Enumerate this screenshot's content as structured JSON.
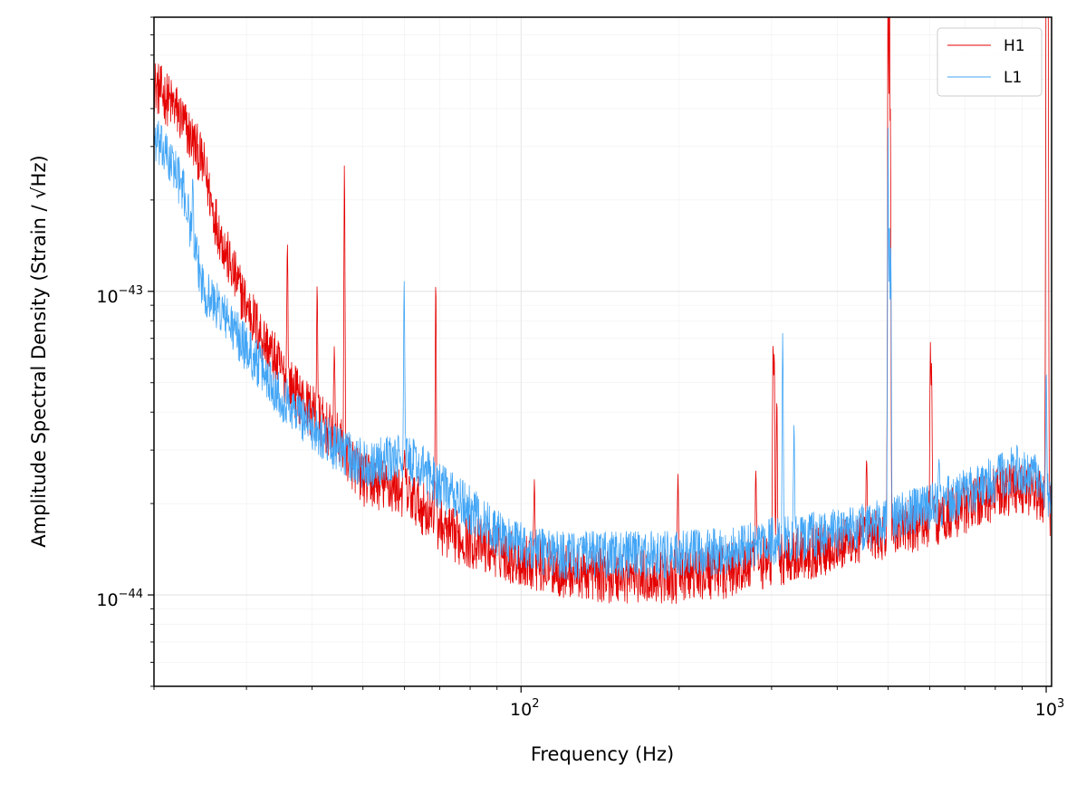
{
  "chart_data": {
    "type": "line",
    "xlabel": "Frequency (Hz)",
    "ylabel": "Amplitude Spectral Density (Strain / √Hz)",
    "x_scale": "log",
    "y_scale": "log",
    "xlim": [
      20,
      1024
    ],
    "ylim": [
      5e-45,
      8e-43
    ],
    "grid": true,
    "legend_position": "top-right",
    "x_ticks": [
      {
        "value": 100,
        "label": "10",
        "exp": "2"
      },
      {
        "value": 1000,
        "label": "10",
        "exp": "3"
      }
    ],
    "y_ticks": [
      {
        "value": 1e-44,
        "label": "10",
        "exp": "−44"
      },
      {
        "value": 1e-43,
        "label": "10",
        "exp": "−43"
      }
    ],
    "series": [
      {
        "name": "H1",
        "color": "#e50000",
        "baseline": [
          [
            20,
            4.8e-43
          ],
          [
            22,
            4e-43
          ],
          [
            24,
            3e-43
          ],
          [
            25,
            2.5e-43
          ],
          [
            26,
            1.8e-43
          ],
          [
            28,
            1.2e-43
          ],
          [
            30,
            9e-44
          ],
          [
            33,
            6.5e-44
          ],
          [
            36,
            5e-44
          ],
          [
            40,
            4e-44
          ],
          [
            45,
            3.2e-44
          ],
          [
            50,
            2.4e-44
          ],
          [
            60,
            2.2e-44
          ],
          [
            68,
            1.8e-44
          ],
          [
            72,
            1.6e-44
          ],
          [
            80,
            1.5e-44
          ],
          [
            90,
            1.4e-44
          ],
          [
            100,
            1.3e-44
          ],
          [
            120,
            1.2e-44
          ],
          [
            150,
            1.15e-44
          ],
          [
            200,
            1.15e-44
          ],
          [
            250,
            1.2e-44
          ],
          [
            300,
            1.3e-44
          ],
          [
            400,
            1.45e-44
          ],
          [
            500,
            1.6e-44
          ],
          [
            600,
            1.75e-44
          ],
          [
            700,
            1.95e-44
          ],
          [
            800,
            2.15e-44
          ],
          [
            880,
            2.3e-44
          ],
          [
            950,
            2.2e-44
          ],
          [
            1024,
            1.9e-44
          ]
        ],
        "noise": 0.09,
        "peaks": [
          [
            35.9,
            1.45e-43
          ],
          [
            40.9,
            1.05e-43
          ],
          [
            44.1,
            6.6e-44
          ],
          [
            46.1,
            2.65e-43
          ],
          [
            60,
            3e-44
          ],
          [
            68.8,
            1.1e-43
          ],
          [
            106,
            2.4e-44
          ],
          [
            199,
            2.5e-44
          ],
          [
            280,
            2.6e-44
          ],
          [
            302,
            7e-44
          ],
          [
            303.5,
            6.5e-44
          ],
          [
            307,
            4.5e-44
          ],
          [
            455,
            2.8e-44
          ],
          [
            500,
            1.4e-42
          ],
          [
            503,
            1.3e-42
          ],
          [
            505,
            4e-43
          ],
          [
            602,
            6.8e-44
          ],
          [
            605,
            5.8e-44
          ],
          [
            1000,
            1.5e-42
          ],
          [
            1004,
            1.4e-42
          ],
          [
            1008,
            1.2e-42
          ]
        ]
      },
      {
        "name": "L1",
        "color": "#42a5f5",
        "baseline": [
          [
            20,
            3.2e-43
          ],
          [
            22,
            2.5e-43
          ],
          [
            23,
            2e-43
          ],
          [
            24,
            1.3e-43
          ],
          [
            25,
            1e-43
          ],
          [
            27,
            8.5e-44
          ],
          [
            30,
            6.5e-44
          ],
          [
            35,
            4.5e-44
          ],
          [
            40,
            3.6e-44
          ],
          [
            45,
            3e-44
          ],
          [
            50,
            2.7e-44
          ],
          [
            55,
            2.75e-44
          ],
          [
            60,
            2.85e-44
          ],
          [
            65,
            2.6e-44
          ],
          [
            70,
            2.3e-44
          ],
          [
            80,
            1.9e-44
          ],
          [
            90,
            1.6e-44
          ],
          [
            100,
            1.45e-44
          ],
          [
            120,
            1.35e-44
          ],
          [
            150,
            1.35e-44
          ],
          [
            200,
            1.35e-44
          ],
          [
            250,
            1.4e-44
          ],
          [
            300,
            1.5e-44
          ],
          [
            400,
            1.6e-44
          ],
          [
            500,
            1.75e-44
          ],
          [
            600,
            1.95e-44
          ],
          [
            700,
            2.15e-44
          ],
          [
            800,
            2.4e-44
          ],
          [
            880,
            2.6e-44
          ],
          [
            950,
            2.5e-44
          ],
          [
            1024,
            2e-44
          ]
        ],
        "noise": 0.08,
        "peaks": [
          [
            22.1,
            2.2e-43
          ],
          [
            23.7,
            2.4e-43
          ],
          [
            46.6,
            3.4e-44
          ],
          [
            59.9,
            1.08e-43
          ],
          [
            315,
            7.3e-44
          ],
          [
            331,
            3.7e-44
          ],
          [
            500,
            3.5e-43
          ],
          [
            503,
            1.8e-43
          ],
          [
            506,
            1.4e-43
          ],
          [
            625,
            2.8e-44
          ],
          [
            1000,
            5.5e-44
          ]
        ]
      }
    ]
  }
}
